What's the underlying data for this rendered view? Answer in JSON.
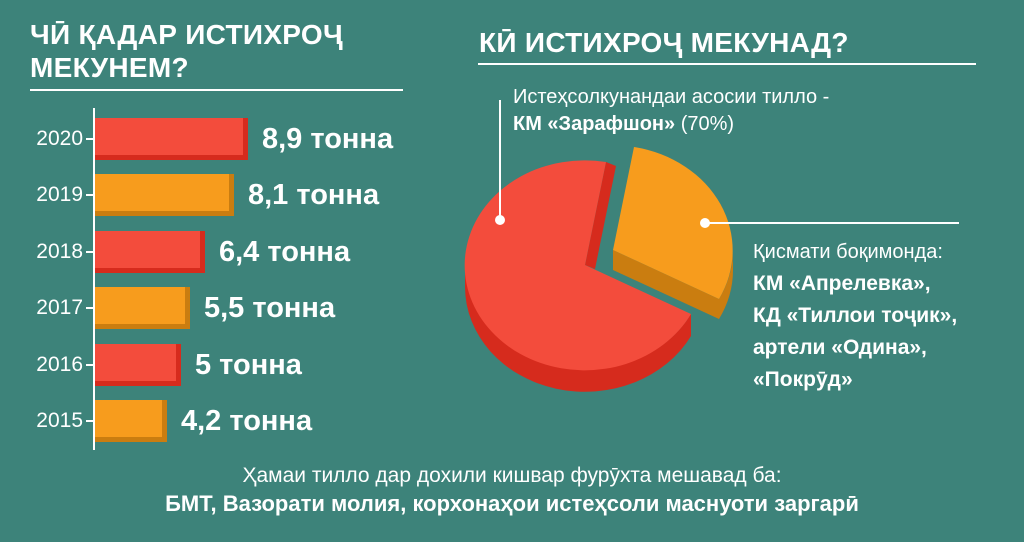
{
  "palette": {
    "background": "#3d837a",
    "red": "#f34c3c",
    "red_dark": "#d62b1d",
    "orange": "#f79c1d",
    "orange_dark": "#ca7d10",
    "white": "#ffffff"
  },
  "left_panel": {
    "title": "ЧӢ ҚАДАР ИСТИХРОҶ МЕКУНЕМ?"
  },
  "right_panel": {
    "title": "КӢ ИСТИХРОҶ МЕКУНАД?"
  },
  "chart_data": [
    {
      "type": "bar",
      "title": "ЧӢ ҚАДАР ИСТИХРОҶ МЕКУНЕМ?",
      "orientation": "horizontal",
      "categories": [
        "2020",
        "2019",
        "2018",
        "2017",
        "2016",
        "2015"
      ],
      "values": [
        8.9,
        8.1,
        6.4,
        5.5,
        5,
        4.2
      ],
      "value_labels": [
        "8,9 тонна",
        "8,1 тонна",
        "6,4 тонна",
        "5,5 тонна",
        "5 тонна",
        "4,2 тонна"
      ],
      "unit": "тонна",
      "bar_colors": [
        "red",
        "orange",
        "red",
        "orange",
        "red",
        "orange"
      ],
      "xlim": [
        0,
        10
      ],
      "grid": false
    },
    {
      "type": "pie",
      "title": "КӢ ИСТИХРОҶ МЕКУНАД?",
      "style": "3d-exploded",
      "slices": [
        {
          "label": "КМ «Зарафшон»",
          "value": 70,
          "color": "red"
        },
        {
          "label": "Қисмати боқимонда",
          "value": 30,
          "color": "orange"
        }
      ],
      "annotations": {
        "main_producer": {
          "line1": "Истеҳсолкунандаи асосии тилло -",
          "line2_bold": "КМ «Зарафшон»",
          "line2_regular": " (70%)"
        },
        "remainder": {
          "heading": "Қисмати боқимонда:",
          "items": [
            "КМ «Апрелевка»,",
            "КД «Тиллои тоҷик»,",
            "артели «Одина»,",
            "«Покрӯд»"
          ]
        }
      }
    }
  ],
  "footer": {
    "line1": "Ҳамаи тилло дар дохили кишвар фурӯхта мешавад ба:",
    "line2": "БМТ, Вазорати молия, корхонаҳои истеҳсоли маснуоти заргарӣ"
  }
}
